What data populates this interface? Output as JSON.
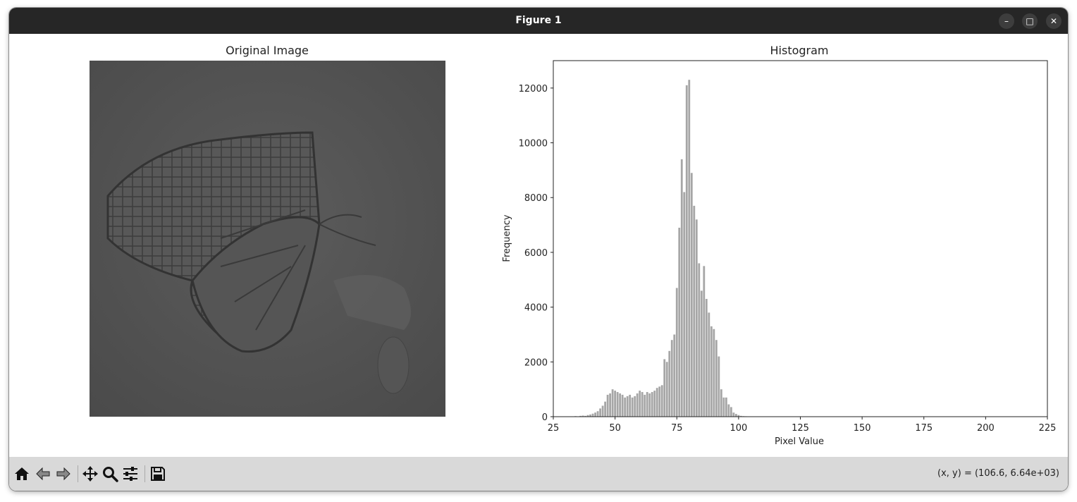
{
  "window": {
    "title": "Figure 1",
    "buttons": {
      "minimize": "–",
      "maximize": "□",
      "close": "✕"
    }
  },
  "left_panel": {
    "title": "Original Image",
    "image_description_icon": "butterfly-grayscale-image"
  },
  "toolbar": {
    "icons": [
      "home-icon",
      "back-icon",
      "forward-icon",
      "pan-icon",
      "zoom-icon",
      "configure-icon",
      "save-icon"
    ],
    "coords": "(x, y) = (106.6, 6.64e+03)"
  },
  "colors": {
    "bar": "#a6a6a6",
    "titlebar": "#262626",
    "toolbar": "#d9d9d9"
  },
  "chart_data": {
    "type": "bar",
    "title": "Histogram",
    "xlabel": "Pixel Value",
    "ylabel": "Frequency",
    "xlim": [
      25,
      225
    ],
    "ylim": [
      0,
      13000
    ],
    "xticks": [
      25,
      50,
      75,
      100,
      125,
      150,
      175,
      200,
      225
    ],
    "yticks": [
      0,
      2000,
      4000,
      6000,
      8000,
      10000,
      12000
    ],
    "x": [
      34,
      36,
      37,
      38,
      39,
      40,
      41,
      42,
      43,
      44,
      45,
      46,
      47,
      48,
      49,
      50,
      51,
      52,
      53,
      54,
      55,
      56,
      57,
      58,
      59,
      60,
      61,
      62,
      63,
      64,
      65,
      66,
      67,
      68,
      69,
      70,
      71,
      72,
      73,
      74,
      75,
      76,
      77,
      78,
      79,
      80,
      81,
      82,
      83,
      84,
      85,
      86,
      87,
      88,
      89,
      90,
      91,
      92,
      93,
      94,
      95,
      96,
      97,
      98,
      99,
      100,
      101,
      102,
      103,
      104
    ],
    "values": [
      20,
      30,
      40,
      30,
      60,
      80,
      110,
      150,
      200,
      300,
      400,
      550,
      800,
      850,
      1000,
      950,
      900,
      850,
      800,
      700,
      750,
      800,
      700,
      750,
      850,
      950,
      900,
      800,
      900,
      850,
      900,
      950,
      1050,
      1100,
      1150,
      2100,
      2000,
      2400,
      2800,
      3000,
      4700,
      6900,
      9400,
      8200,
      12100,
      12300,
      8900,
      7700,
      7200,
      5600,
      4600,
      5500,
      4300,
      3800,
      3300,
      3200,
      2800,
      2200,
      1000,
      700,
      700,
      450,
      350,
      150,
      100,
      60,
      30,
      20,
      15,
      10
    ]
  }
}
